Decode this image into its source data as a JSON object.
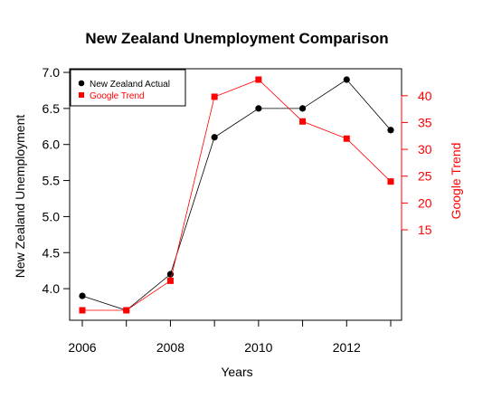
{
  "chart_data": {
    "type": "line",
    "title": "New Zealand Unemployment Comparison",
    "xlabel": "Years",
    "ylabel_left": "New Zealand Unemployment",
    "ylabel_right": "Google Trend",
    "x": [
      2006,
      2007,
      2008,
      2009,
      2010,
      2011,
      2012,
      2013
    ],
    "x_ticks": [
      "2006",
      "2008",
      "2010",
      "2012"
    ],
    "x_tick_values": [
      2006,
      2008,
      2010,
      2012
    ],
    "xlim": [
      2006,
      2013
    ],
    "y_left_ticks": [
      "4.0",
      "4.5",
      "5.0",
      "5.5",
      "6.0",
      "6.5",
      "7.0"
    ],
    "y_left_tick_values": [
      4.0,
      4.5,
      5.0,
      5.5,
      6.0,
      6.5,
      7.0
    ],
    "ylim_left": [
      3.7,
      6.9
    ],
    "y_right_ticks": [
      "15",
      "20",
      "25",
      "30",
      "35",
      "40"
    ],
    "y_right_tick_values": [
      15,
      20,
      25,
      30,
      35,
      40
    ],
    "ylim_right": [
      0,
      43
    ],
    "series": [
      {
        "name": "New Zealand Actual",
        "axis": "left",
        "marker": "circle",
        "color": "#000000",
        "values": [
          3.9,
          3.7,
          4.2,
          6.1,
          6.5,
          6.5,
          6.9,
          6.2
        ]
      },
      {
        "name": "Google Trend",
        "axis": "right",
        "marker": "square",
        "color": "#ff0000",
        "values": [
          0,
          0,
          5.5,
          39.8,
          43,
          35.2,
          32,
          24
        ]
      }
    ],
    "legend": "top-left",
    "grid": false
  }
}
